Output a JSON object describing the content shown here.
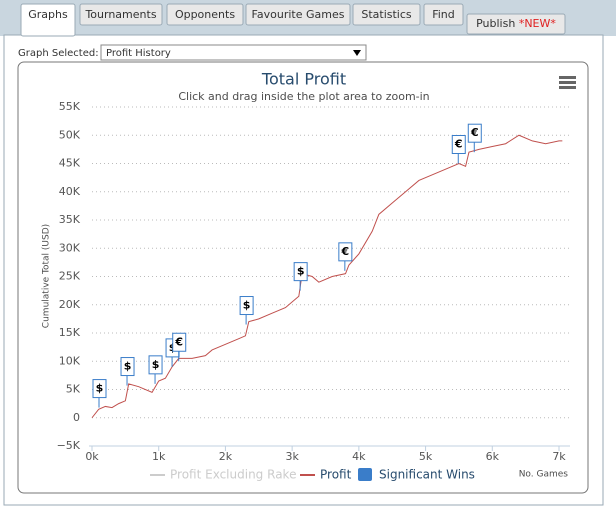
{
  "tabs": [
    "Graphs",
    "Tournaments",
    "Opponents",
    "Favourite Games",
    "Statistics",
    "Find"
  ],
  "publish": {
    "label": "Publish ",
    "badge": "*NEW*"
  },
  "selector": {
    "label": "Graph Selected:",
    "value": "Profit History"
  },
  "chart_data": {
    "type": "line",
    "title": "Total Profit",
    "subtitle": "Click and drag inside the plot area to zoom-in",
    "y_label": "Cumulative Total (USD)",
    "x_label": "No. Games",
    "grid": true,
    "xlim": [
      0,
      7150
    ],
    "ylim": [
      -5000,
      55000
    ],
    "xticks": [
      {
        "value": 0,
        "label": "0k"
      },
      {
        "value": 1000,
        "label": "1k"
      },
      {
        "value": 2000,
        "label": "2k"
      },
      {
        "value": 3000,
        "label": "3k"
      },
      {
        "value": 4000,
        "label": "4k"
      },
      {
        "value": 5000,
        "label": "5k"
      },
      {
        "value": 6000,
        "label": "6k"
      },
      {
        "value": 7000,
        "label": "7k"
      }
    ],
    "yticks": [
      {
        "value": -5000,
        "label": "−5K"
      },
      {
        "value": 0,
        "label": "0"
      },
      {
        "value": 5000,
        "label": "5K"
      },
      {
        "value": 10000,
        "label": "10K"
      },
      {
        "value": 15000,
        "label": "15K"
      },
      {
        "value": 20000,
        "label": "20K"
      },
      {
        "value": 25000,
        "label": "25K"
      },
      {
        "value": 30000,
        "label": "30K"
      },
      {
        "value": 35000,
        "label": "35K"
      },
      {
        "value": 40000,
        "label": "40K"
      },
      {
        "value": 45000,
        "label": "45K"
      },
      {
        "value": 50000,
        "label": "50K"
      },
      {
        "value": 55000,
        "label": "55K"
      }
    ],
    "x": [
      0,
      100,
      200,
      300,
      400,
      500,
      550,
      700,
      900,
      1000,
      1100,
      1200,
      1300,
      1500,
      1700,
      1800,
      2000,
      2200,
      2300,
      2350,
      2500,
      2700,
      2900,
      3100,
      3150,
      3300,
      3400,
      3600,
      3800,
      3850,
      4000,
      4200,
      4300,
      4500,
      4700,
      4900,
      5100,
      5300,
      5500,
      5600,
      5650,
      5800,
      6000,
      6200,
      6400,
      6600,
      6800,
      7000,
      7050
    ],
    "series": [
      {
        "name": "Profit Excluding Rake",
        "color": "#cccccc",
        "visible": false
      },
      {
        "name": "Profit",
        "color": "#c0504d",
        "visible": true,
        "values": [
          0,
          1500,
          2000,
          1800,
          2500,
          3000,
          6000,
          5500,
          4500,
          6500,
          7000,
          9000,
          10500,
          10500,
          11000,
          12000,
          13000,
          14000,
          14500,
          17000,
          17500,
          18500,
          19500,
          21500,
          25500,
          25000,
          24000,
          25000,
          25500,
          27000,
          29000,
          33000,
          36000,
          38000,
          40000,
          42000,
          43000,
          44000,
          45000,
          44500,
          47000,
          47500,
          48000,
          48500,
          50000,
          49000,
          48500,
          49000,
          49000
        ]
      }
    ],
    "flags": {
      "name": "Significant Wins",
      "color": "#3a7dc9",
      "points": [
        {
          "x": 105,
          "y": 1800,
          "label": "$"
        },
        {
          "x": 525,
          "y": 5700,
          "label": "$"
        },
        {
          "x": 945,
          "y": 6000,
          "label": "$"
        },
        {
          "x": 1200,
          "y": 9000,
          "label": "$"
        },
        {
          "x": 1300,
          "y": 10000,
          "label": "€"
        },
        {
          "x": 2310,
          "y": 16500,
          "label": "$"
        },
        {
          "x": 3120,
          "y": 22500,
          "label": "$"
        },
        {
          "x": 3790,
          "y": 26000,
          "label": "€"
        },
        {
          "x": 5490,
          "y": 45000,
          "label": "€"
        },
        {
          "x": 5730,
          "y": 47000,
          "label": "€"
        }
      ]
    }
  }
}
